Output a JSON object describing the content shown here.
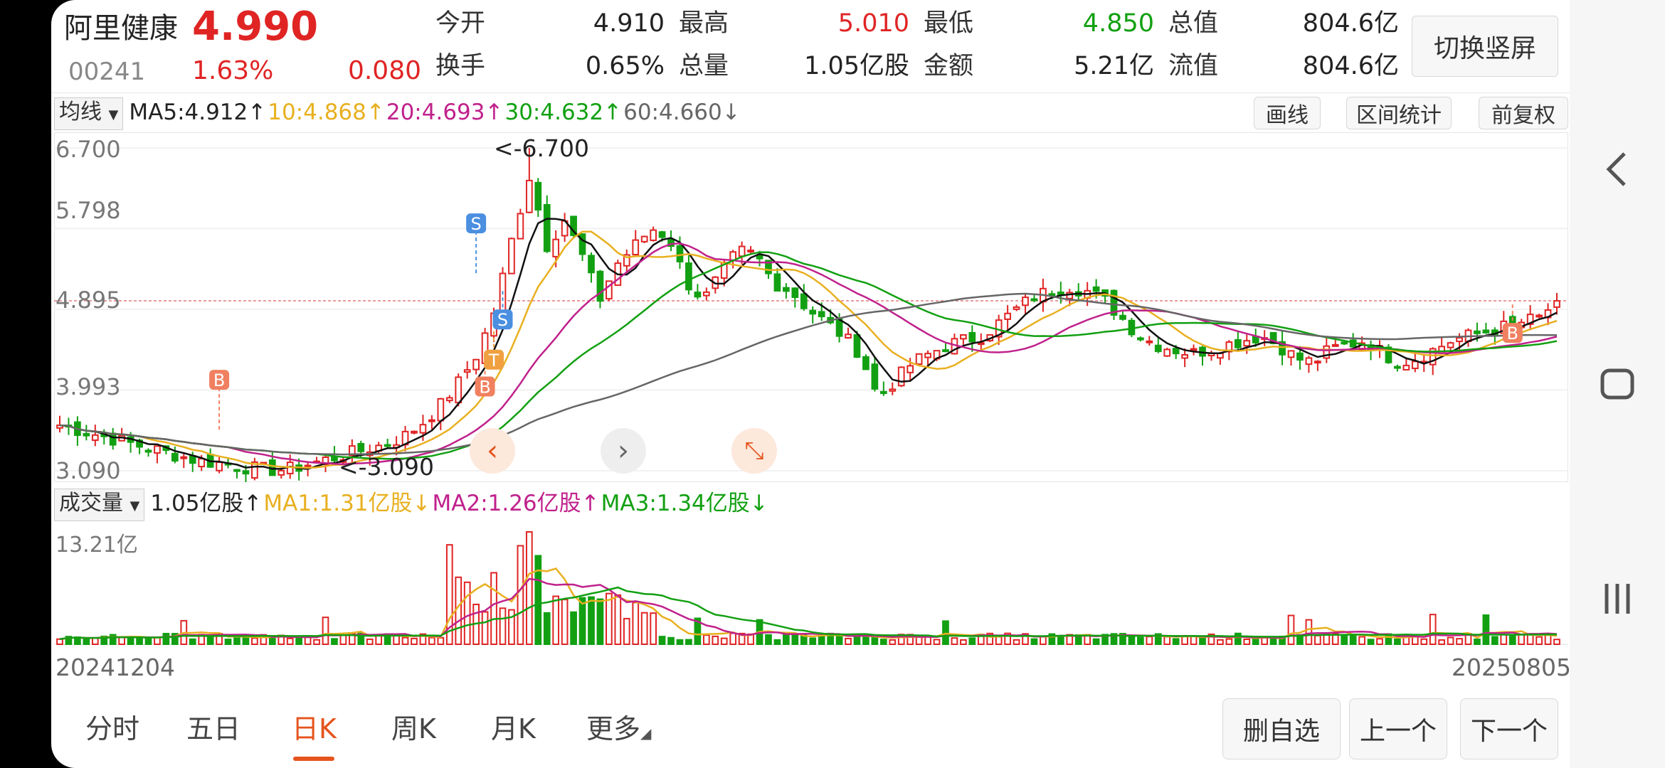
{
  "header": {
    "name": "阿里健康",
    "price": "4.990",
    "code": "00241",
    "change_pct": "1.63%",
    "change": "0.080",
    "quote_rows": [
      [
        {
          "label": "今开",
          "value": "4.910",
          "color": "default"
        },
        {
          "label": "最高",
          "value": "5.010",
          "color": "red"
        },
        {
          "label": "最低",
          "value": "4.850",
          "color": "green"
        },
        {
          "label": "总值",
          "value": "804.6亿",
          "color": "default"
        }
      ],
      [
        {
          "label": "换手",
          "value": "0.65%",
          "color": "default"
        },
        {
          "label": "总量",
          "value": "1.05亿股",
          "color": "default"
        },
        {
          "label": "金额",
          "value": "5.21亿",
          "color": "default"
        },
        {
          "label": "流值",
          "value": "804.6亿",
          "color": "default"
        }
      ]
    ],
    "switch_button": "切换竖屏"
  },
  "ma_bar": {
    "selector": "均线",
    "items": [
      {
        "text": "MA5:4.912↑",
        "color": "#222222"
      },
      {
        "text": "10:4.868↑",
        "color": "#e8b020"
      },
      {
        "text": "20:4.693↑",
        "color": "#c0218c"
      },
      {
        "text": "30:4.632↑",
        "color": "#12a012"
      },
      {
        "text": "60:4.660↓",
        "color": "#666666"
      }
    ],
    "buttons": [
      "画线",
      "区间统计",
      "前复权"
    ]
  },
  "price_axis": [
    "6.700",
    "5.798",
    "4.895",
    "3.993",
    "3.090"
  ],
  "annotations": {
    "max_label": "<-6.700",
    "min_label": "<-3.090",
    "buy": "B",
    "sell": "S",
    "t": "T"
  },
  "volume_bar": {
    "selector": "成交量",
    "items": [
      {
        "text": "1.05亿股↑",
        "color": "#222222"
      },
      {
        "text": "MA1:1.31亿股↓",
        "color": "#e8b020"
      },
      {
        "text": "MA2:1.26亿股↑",
        "color": "#c0218c"
      },
      {
        "text": "MA3:1.34亿股↓",
        "color": "#12a012"
      }
    ]
  },
  "volume_axis": {
    "max": "13.21亿"
  },
  "dates": {
    "start": "20241204",
    "end": "20250805"
  },
  "chart_controls": {
    "prev": "chevron-left-icon",
    "next": "chevron-right-icon",
    "collapse": "collapse-arrows-icon"
  },
  "colors": {
    "up": "#e02424",
    "down": "#12a012",
    "accent": "#e5541d"
  },
  "chart_data": {
    "type": "candlestick",
    "ylim": [
      3.09,
      6.7
    ],
    "closes": [
      3.6,
      3.55,
      3.5,
      3.45,
      3.4,
      3.35,
      3.3,
      3.25,
      3.2,
      3.18,
      3.15,
      3.12,
      3.1,
      3.1,
      3.15,
      3.2,
      3.25,
      3.3,
      3.35,
      3.4,
      3.5,
      3.65,
      3.85,
      4.1,
      4.4,
      4.9,
      5.7,
      6.4,
      5.6,
      5.9,
      5.5,
      5.0,
      5.4,
      5.6,
      5.8,
      5.7,
      5.2,
      5.0,
      5.3,
      5.55,
      5.5,
      5.2,
      5.1,
      4.9,
      4.75,
      4.6,
      4.4,
      3.9,
      4.1,
      4.3,
      4.4,
      4.5,
      4.55,
      4.6,
      4.75,
      4.9,
      5.05,
      5.1,
      5.15,
      5.1,
      5.0,
      4.8,
      4.6,
      4.5,
      4.45,
      4.4,
      4.45,
      4.5,
      4.55,
      4.6,
      4.5,
      4.35,
      4.3,
      4.45,
      4.5,
      4.55,
      4.4,
      4.3,
      4.35,
      4.45,
      4.55,
      4.6,
      4.65,
      4.7,
      4.75,
      4.8,
      4.99
    ]
  },
  "tabs": [
    {
      "label": "分时",
      "active": false
    },
    {
      "label": "五日",
      "active": false
    },
    {
      "label": "日K",
      "active": true
    },
    {
      "label": "周K",
      "active": false
    },
    {
      "label": "月K",
      "active": false
    },
    {
      "label": "更多",
      "active": false
    }
  ],
  "bottom_buttons": [
    "删自选",
    "上一个",
    "下一个"
  ],
  "system_nav": {
    "back": "back-chevron-icon",
    "home": "home-square-icon",
    "recents": "recents-bars-icon"
  }
}
